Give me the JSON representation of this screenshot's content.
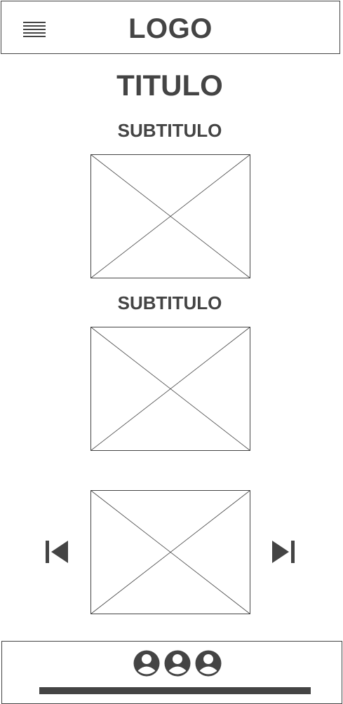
{
  "header": {
    "logo_text": "LOGO",
    "menu_icon": "hamburger-menu-icon"
  },
  "page": {
    "title": "TITULO",
    "subtitle_1": "SUBTITULO",
    "subtitle_2": "SUBTITULO"
  },
  "images": [
    {
      "icon": "image-placeholder-icon"
    },
    {
      "icon": "image-placeholder-icon"
    },
    {
      "icon": "image-placeholder-icon"
    }
  ],
  "carousel": {
    "prev_icon": "skip-previous-icon",
    "next_icon": "skip-next-icon"
  },
  "footer": {
    "avatar_icons": [
      "user-avatar-icon",
      "user-avatar-icon",
      "user-avatar-icon"
    ]
  },
  "colors": {
    "ink": "#444444",
    "background": "#ffffff"
  }
}
